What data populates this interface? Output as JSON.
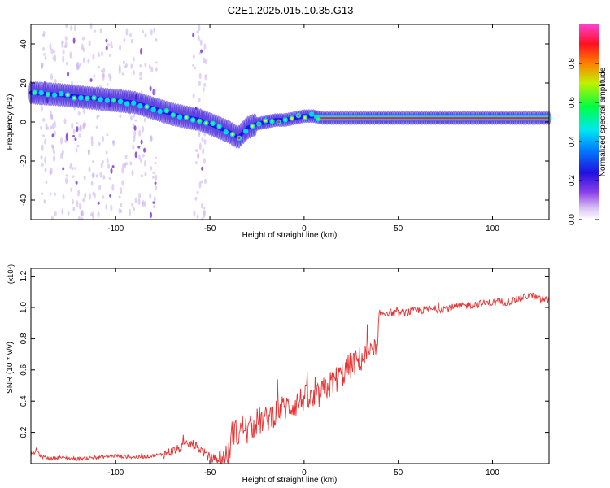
{
  "title": "C2E1.2025.015.10.35.G13",
  "chart_data": [
    {
      "type": "heatmap",
      "xlabel": "Height of straight line (km)",
      "ylabel": "Frequency (Hz)",
      "xlim": [
        -145,
        130
      ],
      "ylim": [
        -50,
        50
      ],
      "xticks": [
        "-100",
        "-50",
        "0",
        "50",
        "100"
      ],
      "xtick_values": [
        -100,
        -50,
        0,
        50,
        100
      ],
      "yticks": [
        "-40",
        "-20",
        "0",
        "20",
        "40"
      ],
      "ytick_values": [
        -40,
        -20,
        0,
        20,
        40
      ],
      "colorbar": {
        "label": "Normalized spectral amplitude",
        "range": [
          0,
          1
        ],
        "ticks": [
          "0.0",
          "0.2",
          "0.4",
          "0.6",
          "0.8"
        ],
        "tick_values": [
          0.0,
          0.2,
          0.4,
          0.6,
          0.8
        ],
        "colormap": [
          "#ffffff",
          "#c8a8f0",
          "#7a28e0",
          "#1a10e0",
          "#00c8ff",
          "#00ff60",
          "#f0f000",
          "#ff2020",
          "#ff30c0"
        ]
      },
      "ridge": {
        "name": "",
        "x": [
          -145,
          -130,
          -120,
          -110,
          -100,
          -90,
          -80,
          -70,
          -60,
          -55,
          -50,
          -45,
          -40,
          -35,
          -30,
          -25,
          -20,
          -15,
          -10,
          -5,
          0,
          5,
          10,
          20,
          40,
          60,
          80,
          100,
          120,
          130
        ],
        "y": [
          15,
          14,
          13,
          12,
          11,
          10,
          7,
          4,
          2,
          1,
          -1,
          -3,
          -5,
          -8,
          -3,
          -1,
          0,
          1,
          1,
          2,
          3,
          3,
          2,
          2,
          2,
          2,
          2,
          2,
          2,
          2
        ]
      }
    },
    {
      "type": "line",
      "xlabel": "Height of straight line (km)",
      "ylabel": "SNR (10 * v/v)",
      "multiplier": "(x10⁴)",
      "xlim": [
        -145,
        130
      ],
      "ylim": [
        0,
        1.25
      ],
      "xticks": [
        "-100",
        "-50",
        "0",
        "50",
        "100"
      ],
      "xtick_values": [
        -100,
        -50,
        0,
        50,
        100
      ],
      "yticks": [
        "0.2",
        "0.4",
        "0.6",
        "0.8",
        "1.0",
        "1.2"
      ],
      "ytick_values": [
        0.2,
        0.4,
        0.6,
        0.8,
        1.0,
        1.2
      ],
      "color": "#e83030",
      "series": [
        {
          "name": "",
          "x": [
            -145,
            -142,
            -140,
            -135,
            -130,
            -120,
            -110,
            -100,
            -90,
            -80,
            -75,
            -70,
            -65,
            -60,
            -55,
            -50,
            -45,
            -40,
            -38,
            -35,
            -32,
            -30,
            -25,
            -20,
            -15,
            -10,
            -5,
            0,
            5,
            10,
            15,
            20,
            25,
            30,
            35,
            39,
            40,
            45,
            50,
            60,
            70,
            80,
            90,
            100,
            110,
            115,
            120,
            125,
            130
          ],
          "y": [
            0.04,
            0.09,
            0.05,
            0.03,
            0.04,
            0.03,
            0.04,
            0.05,
            0.04,
            0.05,
            0.06,
            0.08,
            0.1,
            0.13,
            0.09,
            0.04,
            0.02,
            0.05,
            0.22,
            0.18,
            0.25,
            0.2,
            0.27,
            0.28,
            0.33,
            0.36,
            0.38,
            0.42,
            0.4,
            0.46,
            0.52,
            0.57,
            0.63,
            0.67,
            0.7,
            0.71,
            0.96,
            0.97,
            0.96,
            0.98,
            0.99,
            1.0,
            1.02,
            1.03,
            1.04,
            1.06,
            1.08,
            1.05,
            1.05
          ]
        }
      ]
    }
  ]
}
